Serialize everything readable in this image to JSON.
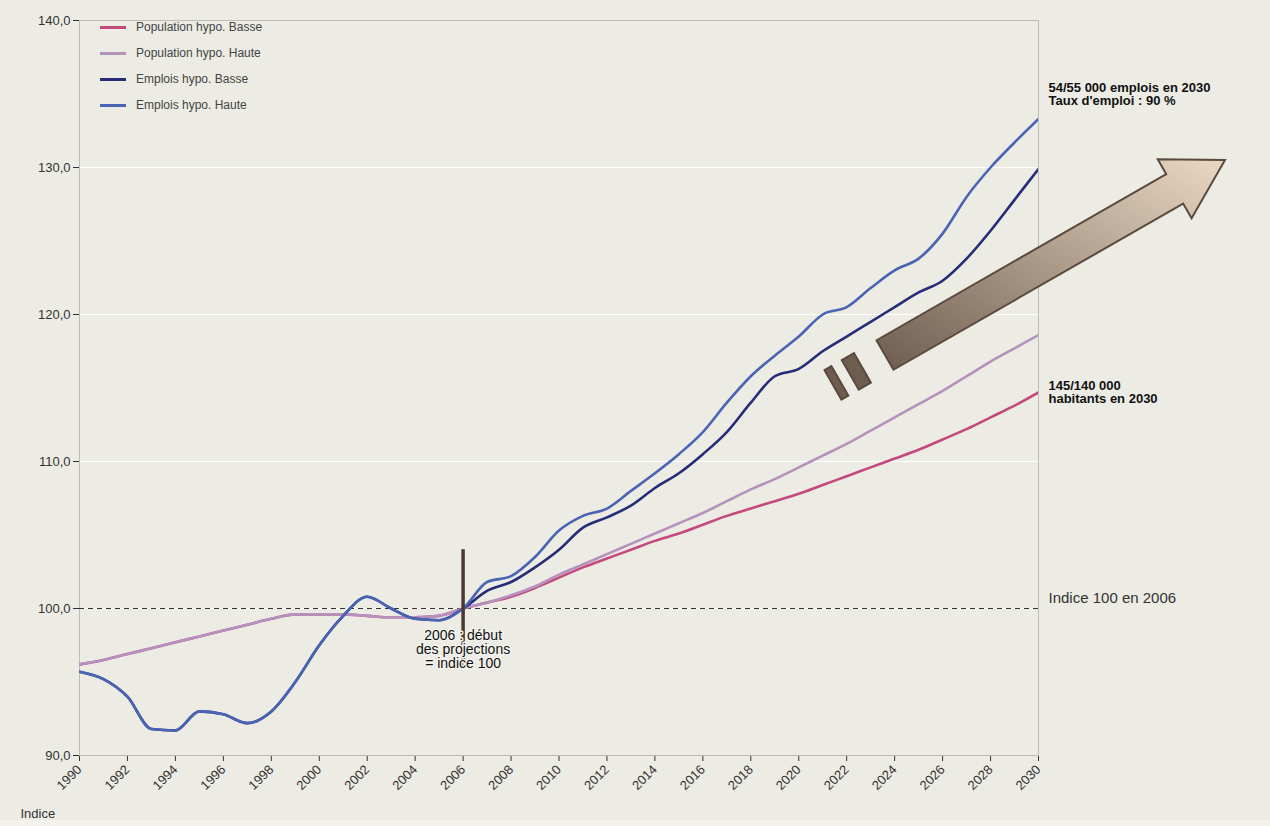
{
  "chart_data": {
    "type": "line",
    "y_label": "Indice",
    "x": [
      1990,
      1991,
      1992,
      1993,
      1994,
      1995,
      1996,
      1997,
      1998,
      1999,
      2000,
      2001,
      2002,
      2003,
      2004,
      2005,
      2006,
      2007,
      2008,
      2009,
      2010,
      2011,
      2012,
      2013,
      2014,
      2015,
      2016,
      2017,
      2018,
      2019,
      2020,
      2021,
      2022,
      2023,
      2024,
      2025,
      2026,
      2027,
      2028,
      2029,
      2030
    ],
    "xlim": [
      1990,
      2030
    ],
    "xticks": [
      1990,
      1992,
      1994,
      1996,
      1998,
      2000,
      2002,
      2004,
      2006,
      2008,
      2010,
      2012,
      2014,
      2016,
      2018,
      2020,
      2022,
      2024,
      2026,
      2028,
      2030
    ],
    "ylim": [
      90,
      140
    ],
    "yticks": [
      {
        "value": 90,
        "label": "90,0"
      },
      {
        "value": 100,
        "label": "100,0"
      },
      {
        "value": 110,
        "label": "110,0"
      },
      {
        "value": 120,
        "label": "120,0"
      },
      {
        "value": 130,
        "label": "130,0"
      },
      {
        "value": 140,
        "label": "140,0"
      }
    ],
    "grid": true,
    "legend": "top-left",
    "baseline": 100,
    "projection_start": 2006,
    "annotations": {
      "employment": "54/55 000 emplois en 2030\nTaux d'emploi : 90 %",
      "population": "145/140 000\nhabitants en 2030",
      "projection": "2006 : début\ndes projections\n= indice 100",
      "baseline": "Indice 100 en 2006"
    },
    "series": [
      {
        "name": "Population hypo. Basse",
        "color": "#c4497c",
        "values": [
          96.2,
          96.5,
          96.9,
          97.3,
          97.7,
          98.1,
          98.5,
          98.9,
          99.3,
          99.6,
          99.6,
          99.6,
          99.5,
          99.4,
          99.4,
          99.5,
          100,
          100.4,
          100.8,
          101.4,
          102.1,
          102.8,
          103.4,
          104.0,
          104.6,
          105.1,
          105.7,
          106.3,
          106.8,
          107.3,
          107.8,
          108.4,
          109.0,
          109.6,
          110.2,
          110.8,
          111.5,
          112.2,
          113.0,
          113.8,
          114.7
        ]
      },
      {
        "name": "Population hypo. Haute",
        "color": "#b592bd",
        "values": [
          96.2,
          96.5,
          96.9,
          97.3,
          97.7,
          98.1,
          98.5,
          98.9,
          99.3,
          99.6,
          99.6,
          99.6,
          99.5,
          99.4,
          99.4,
          99.5,
          100,
          100.4,
          100.9,
          101.5,
          102.3,
          103.0,
          103.7,
          104.4,
          105.1,
          105.8,
          106.5,
          107.3,
          108.1,
          108.8,
          109.6,
          110.4,
          111.2,
          112.1,
          113.0,
          113.9,
          114.8,
          115.8,
          116.8,
          117.7,
          118.6
        ]
      },
      {
        "name": "Emplois hypo. Basse",
        "color": "#262c78",
        "values": [
          95.7,
          95.2,
          94.0,
          91.8,
          91.7,
          93.0,
          92.8,
          92.2,
          93.0,
          95.0,
          97.5,
          99.5,
          100.8,
          100.0,
          99.3,
          99.2,
          100,
          101.2,
          101.8,
          102.8,
          104.0,
          105.5,
          106.2,
          107.0,
          108.2,
          109.2,
          110.5,
          112.0,
          114.0,
          115.8,
          116.3,
          117.5,
          118.5,
          119.5,
          120.5,
          121.5,
          122.3,
          123.8,
          125.7,
          127.8,
          129.9
        ]
      },
      {
        "name": "Emplois hypo. Haute",
        "color": "#4a64b4",
        "values": [
          95.7,
          95.2,
          94.0,
          91.8,
          91.7,
          93.0,
          92.8,
          92.2,
          93.0,
          95.0,
          97.5,
          99.5,
          100.8,
          100.0,
          99.3,
          99.2,
          100,
          101.8,
          102.2,
          103.5,
          105.3,
          106.3,
          106.8,
          108.0,
          109.2,
          110.5,
          112.0,
          114.0,
          115.8,
          117.2,
          118.5,
          120.0,
          120.5,
          121.8,
          123.0,
          123.8,
          125.5,
          128.0,
          130.0,
          131.7,
          133.3
        ]
      }
    ]
  }
}
